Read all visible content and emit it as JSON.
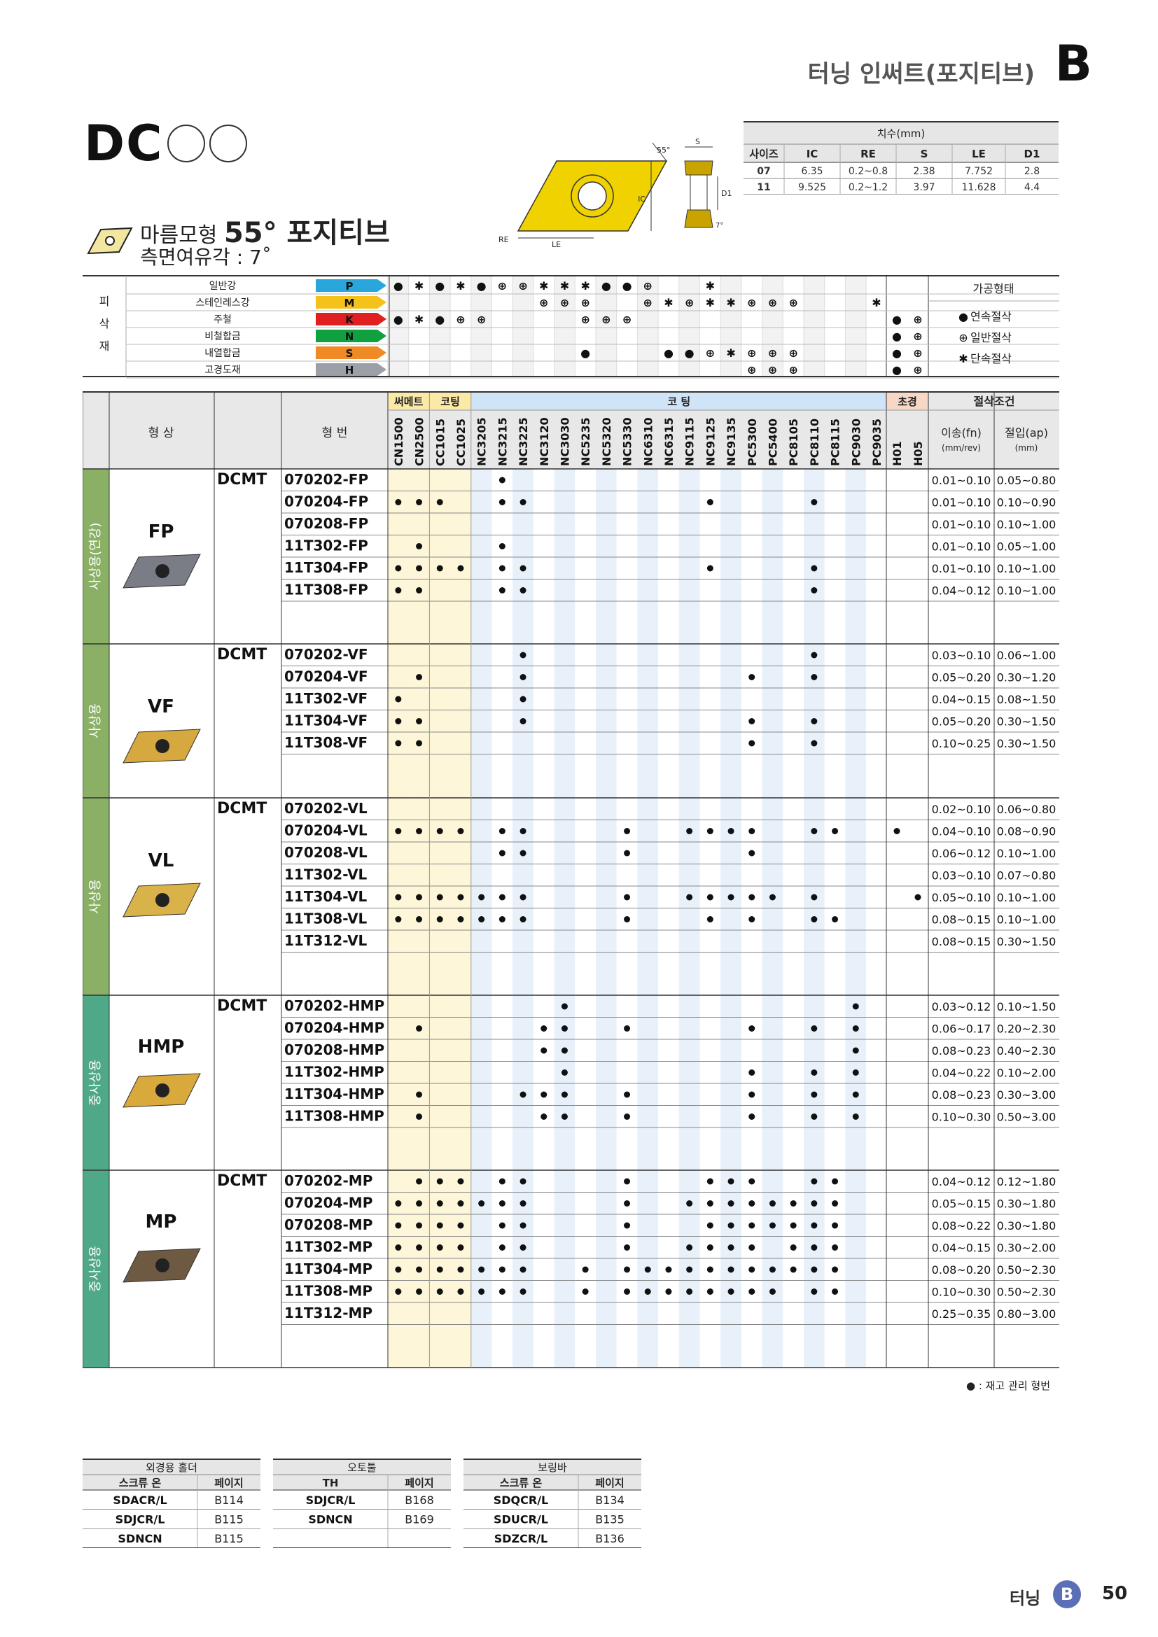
{
  "header": {
    "title": "터닝 인써트(포지티브)",
    "section": "B"
  },
  "product": {
    "code": "DC",
    "shape_label": "마름모형",
    "angle_label": "55° 포지티브",
    "relief_label": "측면여유각 : 7˚"
  },
  "diagram": {
    "angle": "55°",
    "s": "S",
    "ic": "IC",
    "d1": "D1",
    "re": "RE",
    "le": "LE",
    "relief": "7°"
  },
  "dimensions": {
    "group_header": "치수(mm)",
    "headers": [
      "사이즈",
      "IC",
      "RE",
      "S",
      "LE",
      "D1"
    ],
    "rows": [
      [
        "07",
        "6.35",
        "0.2~0.8",
        "2.38",
        "7.752",
        "2.8"
      ],
      [
        "11",
        "9.525",
        "0.2~1.2",
        "3.97",
        "11.628",
        "4.4"
      ]
    ]
  },
  "materials": {
    "side_label": [
      "피",
      "삭",
      "재"
    ],
    "rows": [
      {
        "name": "일반강",
        "code": "P",
        "color": "#29a6dc"
      },
      {
        "name": "스테인레스강",
        "code": "M",
        "color": "#f4c21b"
      },
      {
        "name": "주철",
        "code": "K",
        "color": "#e02020"
      },
      {
        "name": "비철합금",
        "code": "N",
        "color": "#10a040"
      },
      {
        "name": "내열합금",
        "code": "S",
        "color": "#f08a24"
      },
      {
        "name": "고경도재",
        "code": "H",
        "color": "#9aa0a6"
      }
    ],
    "legend_title": "가공형태",
    "legend": [
      {
        "symbol": "●",
        "label": "연속절삭"
      },
      {
        "symbol": "⊕",
        "label": "일반절삭"
      },
      {
        "symbol": "✱",
        "label": "단속절삭"
      }
    ]
  },
  "grid": {
    "shape_header": "형 상",
    "model_header": "형 번",
    "group_cermet": "써메트",
    "group_coated1": "코팅",
    "group_coated2": "코 팅",
    "group_hard": "초경",
    "cut_header": "절삭조건",
    "feed_header": "이송(fn)",
    "feed_unit": "(mm/rev)",
    "depth_header": "절입(ap)",
    "depth_unit": "(mm)",
    "grades": [
      "CN1500",
      "CN2500",
      "CC1015",
      "CC1025",
      "NC3205",
      "NC3215",
      "NC3225",
      "NC3120",
      "NC3030",
      "NC5235",
      "NC5320",
      "NC5330",
      "NC6310",
      "NC6315",
      "NC9115",
      "NC9125",
      "NC9135",
      "PC5300",
      "PC5400",
      "PC8105",
      "PC8110",
      "PC8115",
      "PC9030",
      "PC9035",
      "H01",
      "H05"
    ]
  },
  "sections": [
    {
      "side": "사상용(연강)",
      "side_color": "#8ab066",
      "label": "FP",
      "prefix": "DCMT",
      "rows": [
        {
          "model": "070202-FP",
          "feed": "0.01~0.10",
          "depth": "0.05~0.80"
        },
        {
          "model": "070204-FP",
          "feed": "0.01~0.10",
          "depth": "0.10~0.90"
        },
        {
          "model": "070208-FP",
          "feed": "0.01~0.10",
          "depth": "0.10~1.00"
        },
        {
          "model": "11T302-FP",
          "feed": "0.01~0.10",
          "depth": "0.05~1.00"
        },
        {
          "model": "11T304-FP",
          "feed": "0.01~0.10",
          "depth": "0.10~1.00"
        },
        {
          "model": "11T308-FP",
          "feed": "0.04~0.12",
          "depth": "0.10~1.00"
        }
      ]
    },
    {
      "side": "사상용",
      "side_color": "#8ab066",
      "label": "VF",
      "prefix": "DCMT",
      "rows": [
        {
          "model": "070202-VF",
          "feed": "0.03~0.10",
          "depth": "0.06~1.00"
        },
        {
          "model": "070204-VF",
          "feed": "0.05~0.20",
          "depth": "0.30~1.20"
        },
        {
          "model": "11T302-VF",
          "feed": "0.04~0.15",
          "depth": "0.08~1.50"
        },
        {
          "model": "11T304-VF",
          "feed": "0.05~0.20",
          "depth": "0.30~1.50"
        },
        {
          "model": "11T308-VF",
          "feed": "0.10~0.25",
          "depth": "0.30~1.50"
        }
      ]
    },
    {
      "side": "사상용",
      "side_color": "#8ab066",
      "label": "VL",
      "prefix": "DCMT",
      "rows": [
        {
          "model": "070202-VL",
          "feed": "0.02~0.10",
          "depth": "0.06~0.80"
        },
        {
          "model": "070204-VL",
          "feed": "0.04~0.10",
          "depth": "0.08~0.90"
        },
        {
          "model": "070208-VL",
          "feed": "0.06~0.12",
          "depth": "0.10~1.00"
        },
        {
          "model": "11T302-VL",
          "feed": "0.03~0.10",
          "depth": "0.07~0.80"
        },
        {
          "model": "11T304-VL",
          "feed": "0.05~0.10",
          "depth": "0.10~1.00"
        },
        {
          "model": "11T308-VL",
          "feed": "0.08~0.15",
          "depth": "0.10~1.00"
        },
        {
          "model": "11T312-VL",
          "feed": "0.08~0.15",
          "depth": "0.30~1.50"
        }
      ]
    },
    {
      "side": "중사상용",
      "side_color": "#4fa887",
      "label": "HMP",
      "prefix": "DCMT",
      "rows": [
        {
          "model": "070202-HMP",
          "feed": "0.03~0.12",
          "depth": "0.10~1.50"
        },
        {
          "model": "070204-HMP",
          "feed": "0.06~0.17",
          "depth": "0.20~2.30"
        },
        {
          "model": "070208-HMP",
          "feed": "0.08~0.23",
          "depth": "0.40~2.30"
        },
        {
          "model": "11T302-HMP",
          "feed": "0.04~0.22",
          "depth": "0.10~2.00"
        },
        {
          "model": "11T304-HMP",
          "feed": "0.08~0.23",
          "depth": "0.30~3.00"
        },
        {
          "model": "11T308-HMP",
          "feed": "0.10~0.30",
          "depth": "0.50~3.00"
        }
      ]
    },
    {
      "side": "중사상용",
      "side_color": "#4fa887",
      "label": "MP",
      "prefix": "DCMT",
      "rows": [
        {
          "model": "070202-MP",
          "feed": "0.04~0.12",
          "depth": "0.12~1.80"
        },
        {
          "model": "070204-MP",
          "feed": "0.05~0.15",
          "depth": "0.30~1.80"
        },
        {
          "model": "070208-MP",
          "feed": "0.08~0.22",
          "depth": "0.30~1.80"
        },
        {
          "model": "11T302-MP",
          "feed": "0.04~0.15",
          "depth": "0.30~2.00"
        },
        {
          "model": "11T304-MP",
          "feed": "0.08~0.20",
          "depth": "0.50~2.30"
        },
        {
          "model": "11T308-MP",
          "feed": "0.10~0.30",
          "depth": "0.50~2.30"
        },
        {
          "model": "11T312-MP",
          "feed": "0.25~0.35",
          "depth": "0.80~3.00"
        }
      ]
    }
  ],
  "stock_note": "● : 재고 관리 형번",
  "holders": [
    {
      "title": "외경용 홀더",
      "col1": "스크류 온",
      "col2": "페이지",
      "rows": [
        [
          "SDACR/L",
          "B114"
        ],
        [
          "SDJCR/L",
          "B115"
        ],
        [
          "SDNCN",
          "B115"
        ]
      ]
    },
    {
      "title": "오토툴",
      "col1": "TH",
      "col2": "페이지",
      "rows": [
        [
          "SDJCR/L",
          "B168"
        ],
        [
          "SDNCN",
          "B169"
        ],
        [
          "",
          ""
        ]
      ]
    },
    {
      "title": "보링바",
      "col1": "스크류 온",
      "col2": "페이지",
      "rows": [
        [
          "SDQCR/L",
          "B134"
        ],
        [
          "SDUCR/L",
          "B135"
        ],
        [
          "SDZCR/L",
          "B136"
        ]
      ]
    }
  ],
  "footer": {
    "label": "터닝",
    "badge": "B",
    "page": "50"
  }
}
